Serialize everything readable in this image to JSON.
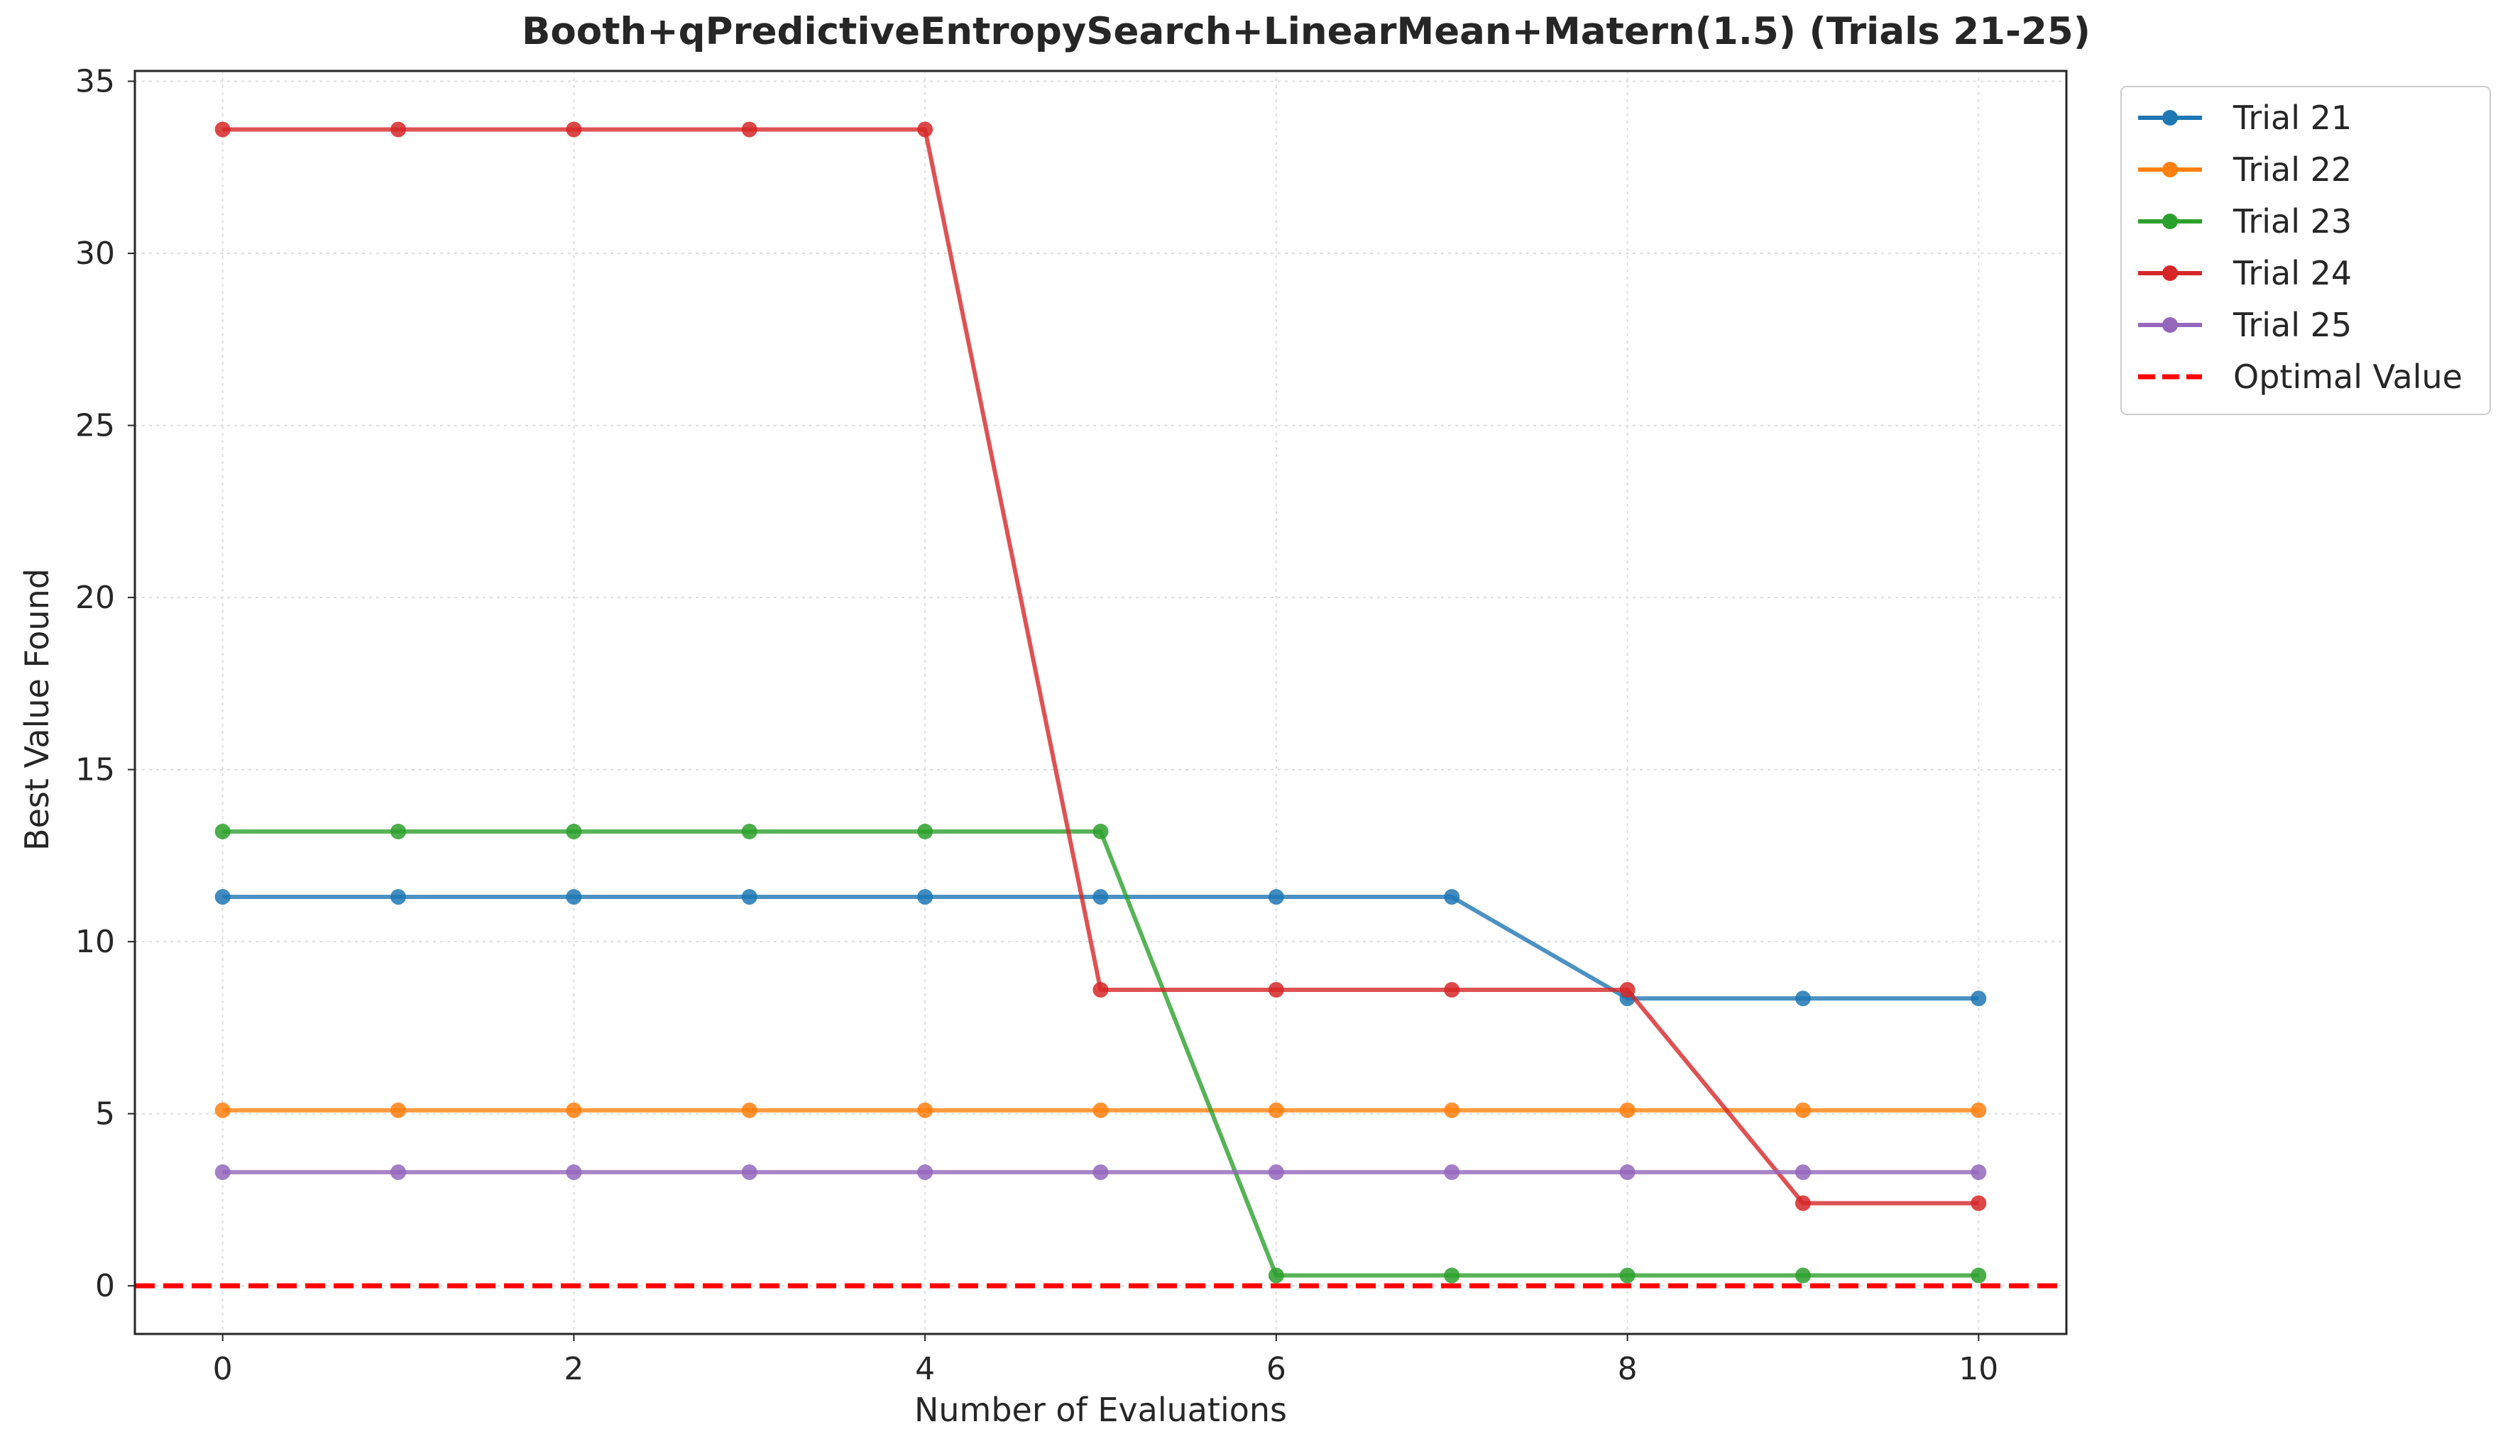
{
  "chart_data": {
    "type": "line",
    "title": "Booth+qPredictiveEntropySearch+LinearMean+Matern(1.5) (Trials 21-25)",
    "xlabel": "Number of Evaluations",
    "ylabel": "Best Value Found",
    "xlim": [
      -0.5,
      10.5
    ],
    "ylim": [
      -1.4,
      35.3
    ],
    "xticks": [
      0,
      2,
      4,
      6,
      8,
      10
    ],
    "yticks": [
      0,
      5,
      10,
      15,
      20,
      25,
      30,
      35
    ],
    "grid": true,
    "legend_position": "outside top-right",
    "x": [
      0,
      1,
      2,
      3,
      4,
      5,
      6,
      7,
      8,
      9,
      10
    ],
    "series": [
      {
        "name": "Trial 21",
        "color": "#1f77b4",
        "values": [
          11.3,
          11.3,
          11.3,
          11.3,
          11.3,
          11.3,
          11.3,
          11.3,
          8.35,
          8.35,
          8.35
        ]
      },
      {
        "name": "Trial 22",
        "color": "#ff7f0e",
        "values": [
          5.1,
          5.1,
          5.1,
          5.1,
          5.1,
          5.1,
          5.1,
          5.1,
          5.1,
          5.1,
          5.1
        ]
      },
      {
        "name": "Trial 23",
        "color": "#2ca02c",
        "values": [
          13.2,
          13.2,
          13.2,
          13.2,
          13.2,
          13.2,
          0.3,
          0.3,
          0.3,
          0.3,
          0.3
        ]
      },
      {
        "name": "Trial 24",
        "color": "#d62728",
        "values": [
          33.6,
          33.6,
          33.6,
          33.6,
          33.6,
          8.6,
          8.6,
          8.6,
          8.6,
          2.4,
          2.4
        ]
      },
      {
        "name": "Trial 25",
        "color": "#9467bd",
        "values": [
          3.3,
          3.3,
          3.3,
          3.3,
          3.3,
          3.3,
          3.3,
          3.3,
          3.3,
          3.3,
          3.3
        ]
      }
    ],
    "reference_line": {
      "name": "Optimal Value",
      "value": 0,
      "color": "#ff0000",
      "style": "dashed"
    }
  }
}
